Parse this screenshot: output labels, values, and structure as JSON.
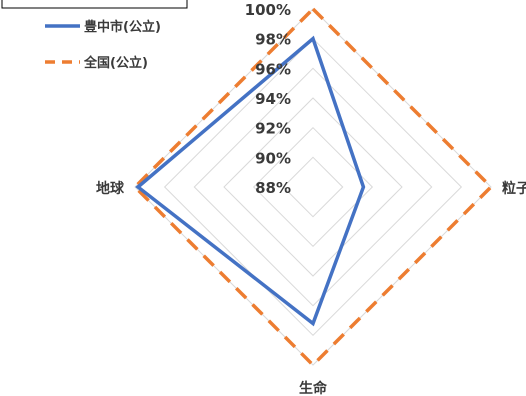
{
  "chart_data": {
    "type": "radar",
    "title": "",
    "axes": [
      "粒子",
      "生命",
      "地球"
    ],
    "axis_top_label": "",
    "range": [
      88,
      100
    ],
    "tick_step": 2,
    "tick_labels": [
      "88%",
      "90%",
      "92%",
      "94%",
      "96%",
      "98%",
      "100%"
    ],
    "grid": true,
    "legend_position": "top-left",
    "series": [
      {
        "name": "豊中市(公立)",
        "values": {
          "top": 98,
          "right": 91.4,
          "bottom": 97.2,
          "left": 99.8
        },
        "color": "#4472C4",
        "style": "solid"
      },
      {
        "name": "全国(公立)",
        "values": {
          "top": 100,
          "right": 100,
          "bottom": 100,
          "left": 100
        },
        "color": "#ED7D31",
        "style": "dashed"
      }
    ]
  },
  "legend": {
    "items": [
      {
        "label": "豊中市(公立)"
      },
      {
        "label": "全国(公立)"
      }
    ]
  }
}
